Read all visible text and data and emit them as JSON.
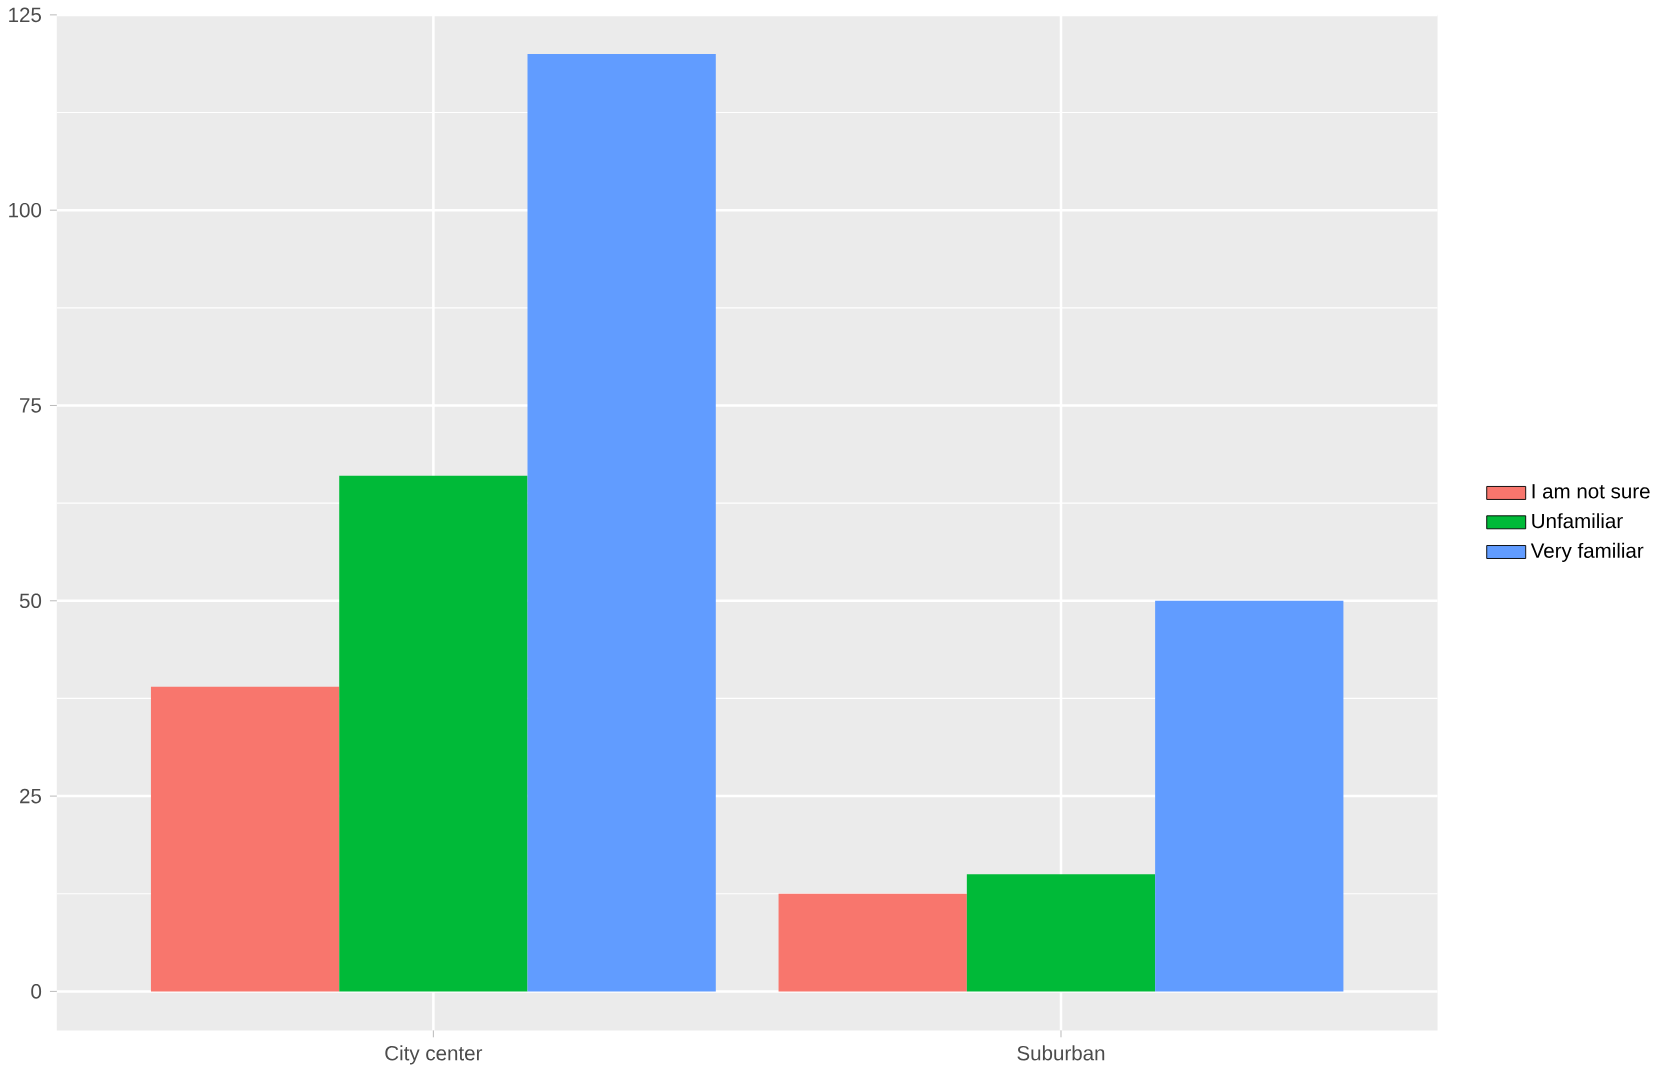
{
  "chart_data": {
    "type": "bar",
    "categories": [
      "City center",
      "Suburban"
    ],
    "series": [
      {
        "name": "I am not sure",
        "color": "#f8766d",
        "values": [
          39,
          12.5
        ]
      },
      {
        "name": "Unfamiliar",
        "color": "#00ba38",
        "values": [
          66,
          15
        ]
      },
      {
        "name": "Very familiar",
        "color": "#619cff",
        "values": [
          120,
          50
        ]
      }
    ],
    "ylim": [
      -5,
      125
    ],
    "yticks": [
      0,
      25,
      50,
      75,
      100,
      125
    ],
    "grid": true,
    "legend": "right"
  }
}
